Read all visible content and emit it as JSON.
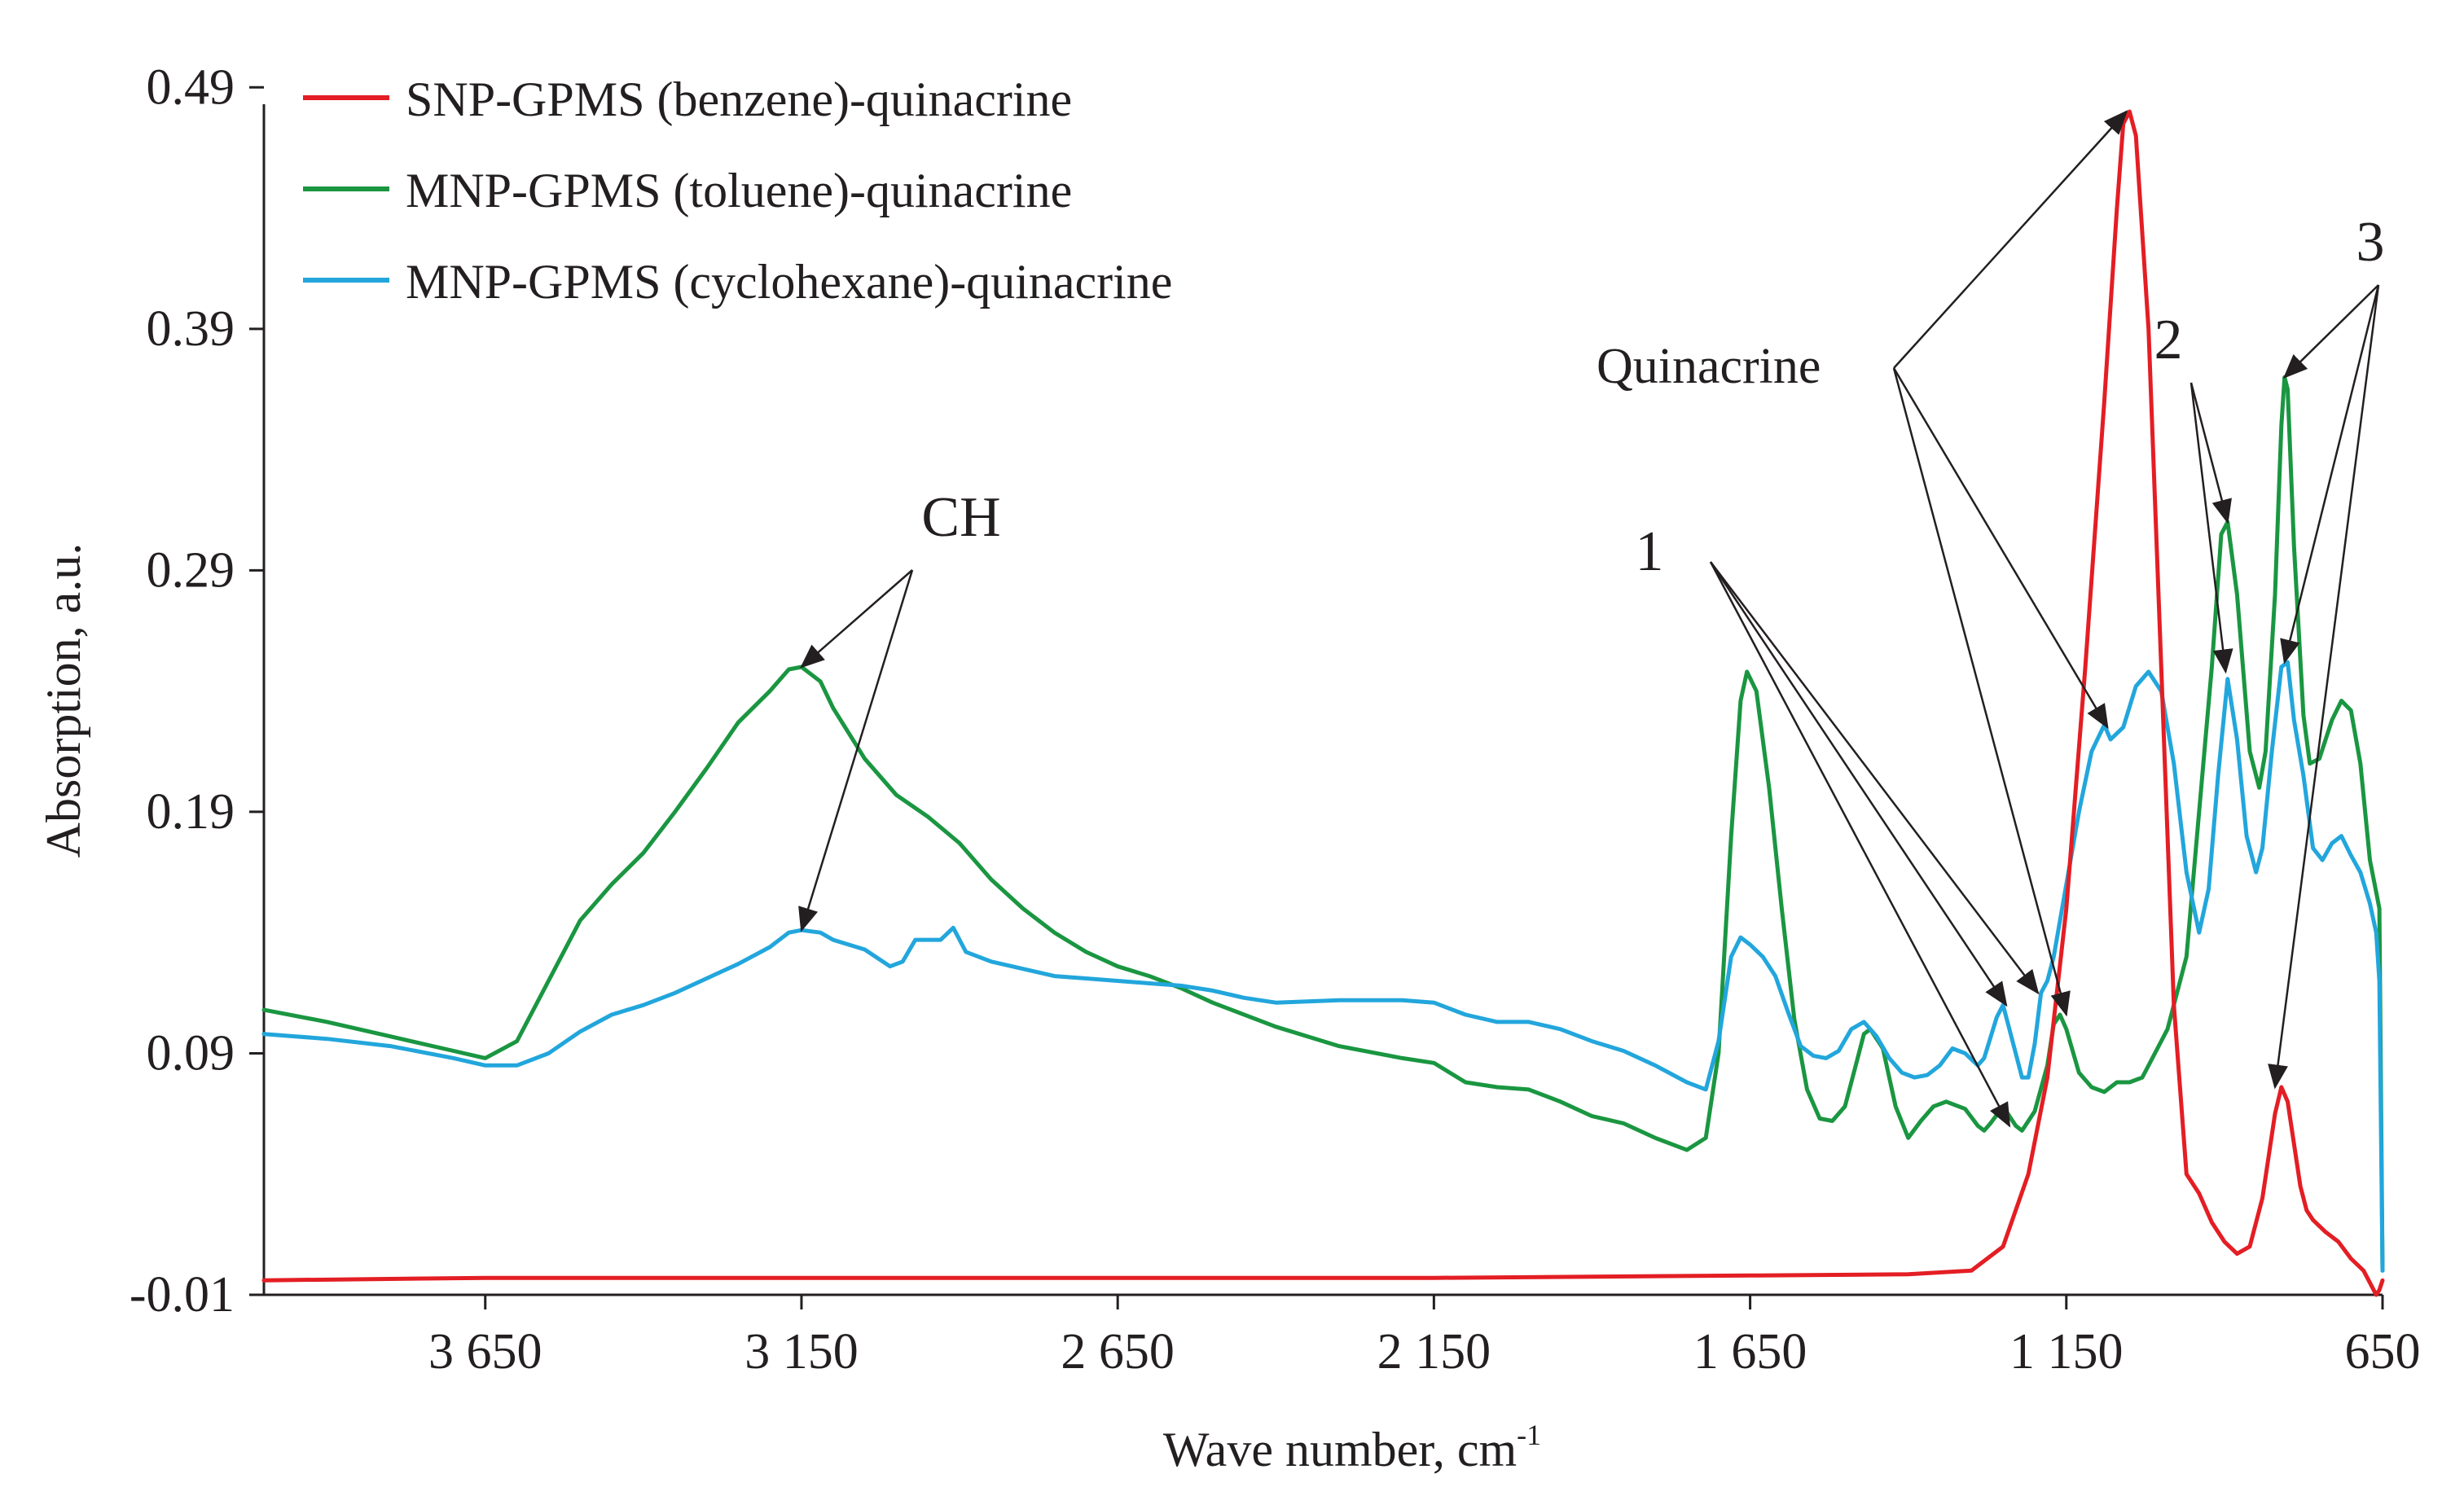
{
  "chart_data": {
    "type": "line",
    "title": "",
    "xlabel": "Wave number, cm",
    "xlabel_sup": "-1",
    "ylabel": "Absorption, a.u.",
    "xlim": [
      4000,
      650
    ],
    "ylim": [
      -0.01,
      0.51
    ],
    "x_inverted": true,
    "x_ticks": [
      3650,
      3150,
      2650,
      2150,
      1650,
      1150,
      650
    ],
    "x_tick_labels": [
      "3 650",
      "3 150",
      "2 650",
      "2 150",
      "1 650",
      "1 150",
      "650"
    ],
    "y_ticks": [
      -0.01,
      0.09,
      0.19,
      0.29,
      0.39,
      0.49
    ],
    "y_tick_labels": [
      "-0.01",
      "0.09",
      "0.19",
      "0.29",
      "0.39",
      "0.49"
    ],
    "grid": false,
    "legend_position": "top-left",
    "series": [
      {
        "name": "SNP-GPMS (benzene)-quinacrine",
        "color": "#e31e24",
        "points": [
          [
            4000,
            -0.004
          ],
          [
            3650,
            -0.003
          ],
          [
            3150,
            -0.003
          ],
          [
            2650,
            -0.003
          ],
          [
            2150,
            -0.003
          ],
          [
            1650,
            -0.002
          ],
          [
            1400,
            -0.0015
          ],
          [
            1300,
            0.0
          ],
          [
            1250,
            0.01
          ],
          [
            1210,
            0.04
          ],
          [
            1180,
            0.08
          ],
          [
            1150,
            0.15
          ],
          [
            1120,
            0.25
          ],
          [
            1090,
            0.36
          ],
          [
            1070,
            0.44
          ],
          [
            1060,
            0.475
          ],
          [
            1050,
            0.48
          ],
          [
            1040,
            0.47
          ],
          [
            1020,
            0.39
          ],
          [
            1000,
            0.25
          ],
          [
            980,
            0.11
          ],
          [
            960,
            0.04
          ],
          [
            940,
            0.032
          ],
          [
            920,
            0.02
          ],
          [
            900,
            0.012
          ],
          [
            880,
            0.007
          ],
          [
            860,
            0.01
          ],
          [
            840,
            0.03
          ],
          [
            820,
            0.065
          ],
          [
            810,
            0.076
          ],
          [
            800,
            0.07
          ],
          [
            780,
            0.035
          ],
          [
            770,
            0.025
          ],
          [
            760,
            0.021
          ],
          [
            740,
            0.016
          ],
          [
            720,
            0.012
          ],
          [
            700,
            0.005
          ],
          [
            680,
            0.0
          ],
          [
            670,
            -0.005
          ],
          [
            660,
            -0.01
          ],
          [
            655,
            -0.008
          ],
          [
            650,
            -0.004
          ]
        ]
      },
      {
        "name": "MNP-GPMS (toluene)-quinacrine",
        "color": "#1a9641",
        "points": [
          [
            4000,
            0.108
          ],
          [
            3900,
            0.103
          ],
          [
            3800,
            0.097
          ],
          [
            3700,
            0.091
          ],
          [
            3650,
            0.088
          ],
          [
            3600,
            0.095
          ],
          [
            3550,
            0.12
          ],
          [
            3500,
            0.145
          ],
          [
            3450,
            0.16
          ],
          [
            3400,
            0.173
          ],
          [
            3350,
            0.19
          ],
          [
            3300,
            0.208
          ],
          [
            3250,
            0.227
          ],
          [
            3200,
            0.24
          ],
          [
            3170,
            0.249
          ],
          [
            3150,
            0.25
          ],
          [
            3120,
            0.244
          ],
          [
            3100,
            0.233
          ],
          [
            3050,
            0.212
          ],
          [
            3000,
            0.197
          ],
          [
            2950,
            0.188
          ],
          [
            2900,
            0.177
          ],
          [
            2850,
            0.162
          ],
          [
            2800,
            0.15
          ],
          [
            2750,
            0.14
          ],
          [
            2700,
            0.132
          ],
          [
            2650,
            0.126
          ],
          [
            2600,
            0.122
          ],
          [
            2550,
            0.117
          ],
          [
            2500,
            0.111
          ],
          [
            2400,
            0.101
          ],
          [
            2300,
            0.093
          ],
          [
            2200,
            0.088
          ],
          [
            2150,
            0.086
          ],
          [
            2100,
            0.078
          ],
          [
            2050,
            0.076
          ],
          [
            2000,
            0.075
          ],
          [
            1950,
            0.07
          ],
          [
            1900,
            0.064
          ],
          [
            1850,
            0.061
          ],
          [
            1800,
            0.055
          ],
          [
            1750,
            0.05
          ],
          [
            1720,
            0.055
          ],
          [
            1700,
            0.09
          ],
          [
            1680,
            0.18
          ],
          [
            1665,
            0.236
          ],
          [
            1655,
            0.248
          ],
          [
            1640,
            0.24
          ],
          [
            1620,
            0.2
          ],
          [
            1600,
            0.15
          ],
          [
            1580,
            0.104
          ],
          [
            1560,
            0.075
          ],
          [
            1540,
            0.063
          ],
          [
            1520,
            0.062
          ],
          [
            1500,
            0.068
          ],
          [
            1480,
            0.088
          ],
          [
            1470,
            0.098
          ],
          [
            1460,
            0.1
          ],
          [
            1440,
            0.092
          ],
          [
            1420,
            0.068
          ],
          [
            1400,
            0.055
          ],
          [
            1380,
            0.062
          ],
          [
            1360,
            0.068
          ],
          [
            1340,
            0.07
          ],
          [
            1310,
            0.067
          ],
          [
            1290,
            0.06
          ],
          [
            1280,
            0.058
          ],
          [
            1270,
            0.061
          ],
          [
            1250,
            0.068
          ],
          [
            1230,
            0.06
          ],
          [
            1220,
            0.058
          ],
          [
            1200,
            0.066
          ],
          [
            1180,
            0.085
          ],
          [
            1170,
            0.102
          ],
          [
            1160,
            0.106
          ],
          [
            1150,
            0.1
          ],
          [
            1130,
            0.082
          ],
          [
            1110,
            0.076
          ],
          [
            1090,
            0.074
          ],
          [
            1070,
            0.078
          ],
          [
            1050,
            0.078
          ],
          [
            1030,
            0.08
          ],
          [
            1010,
            0.09
          ],
          [
            990,
            0.1
          ],
          [
            960,
            0.13
          ],
          [
            940,
            0.19
          ],
          [
            920,
            0.25
          ],
          [
            905,
            0.305
          ],
          [
            895,
            0.31
          ],
          [
            880,
            0.28
          ],
          [
            860,
            0.215
          ],
          [
            845,
            0.2
          ],
          [
            835,
            0.215
          ],
          [
            820,
            0.28
          ],
          [
            810,
            0.35
          ],
          [
            805,
            0.37
          ],
          [
            800,
            0.365
          ],
          [
            790,
            0.3
          ],
          [
            775,
            0.23
          ],
          [
            765,
            0.21
          ],
          [
            750,
            0.212
          ],
          [
            730,
            0.228
          ],
          [
            715,
            0.236
          ],
          [
            700,
            0.232
          ],
          [
            685,
            0.21
          ],
          [
            670,
            0.17
          ],
          [
            655,
            0.15
          ],
          [
            650,
            0.0
          ]
        ]
      },
      {
        "name": "MNP-GPMS (cyclohexane)-quinacrine",
        "color": "#22a6dc",
        "points": [
          [
            4000,
            0.098
          ],
          [
            3900,
            0.096
          ],
          [
            3800,
            0.093
          ],
          [
            3700,
            0.088
          ],
          [
            3650,
            0.085
          ],
          [
            3600,
            0.085
          ],
          [
            3550,
            0.09
          ],
          [
            3500,
            0.099
          ],
          [
            3450,
            0.106
          ],
          [
            3400,
            0.11
          ],
          [
            3350,
            0.115
          ],
          [
            3300,
            0.121
          ],
          [
            3250,
            0.127
          ],
          [
            3200,
            0.134
          ],
          [
            3170,
            0.14
          ],
          [
            3150,
            0.141
          ],
          [
            3120,
            0.14
          ],
          [
            3100,
            0.137
          ],
          [
            3050,
            0.133
          ],
          [
            3010,
            0.126
          ],
          [
            2990,
            0.128
          ],
          [
            2970,
            0.137
          ],
          [
            2930,
            0.137
          ],
          [
            2910,
            0.142
          ],
          [
            2890,
            0.132
          ],
          [
            2850,
            0.128
          ],
          [
            2800,
            0.125
          ],
          [
            2750,
            0.122
          ],
          [
            2700,
            0.121
          ],
          [
            2650,
            0.12
          ],
          [
            2600,
            0.119
          ],
          [
            2550,
            0.118
          ],
          [
            2500,
            0.116
          ],
          [
            2450,
            0.113
          ],
          [
            2400,
            0.111
          ],
          [
            2300,
            0.112
          ],
          [
            2200,
            0.112
          ],
          [
            2150,
            0.111
          ],
          [
            2100,
            0.106
          ],
          [
            2050,
            0.103
          ],
          [
            2000,
            0.103
          ],
          [
            1950,
            0.1
          ],
          [
            1900,
            0.095
          ],
          [
            1850,
            0.091
          ],
          [
            1800,
            0.085
          ],
          [
            1750,
            0.078
          ],
          [
            1720,
            0.075
          ],
          [
            1700,
            0.095
          ],
          [
            1680,
            0.13
          ],
          [
            1665,
            0.138
          ],
          [
            1650,
            0.135
          ],
          [
            1630,
            0.13
          ],
          [
            1610,
            0.122
          ],
          [
            1590,
            0.107
          ],
          [
            1570,
            0.093
          ],
          [
            1550,
            0.089
          ],
          [
            1530,
            0.088
          ],
          [
            1510,
            0.091
          ],
          [
            1490,
            0.1
          ],
          [
            1470,
            0.103
          ],
          [
            1450,
            0.097
          ],
          [
            1430,
            0.088
          ],
          [
            1410,
            0.082
          ],
          [
            1390,
            0.08
          ],
          [
            1370,
            0.081
          ],
          [
            1350,
            0.085
          ],
          [
            1330,
            0.092
          ],
          [
            1310,
            0.09
          ],
          [
            1290,
            0.085
          ],
          [
            1280,
            0.088
          ],
          [
            1260,
            0.105
          ],
          [
            1250,
            0.11
          ],
          [
            1240,
            0.1
          ],
          [
            1220,
            0.08
          ],
          [
            1210,
            0.08
          ],
          [
            1200,
            0.094
          ],
          [
            1190,
            0.115
          ],
          [
            1180,
            0.12
          ],
          [
            1170,
            0.13
          ],
          [
            1150,
            0.16
          ],
          [
            1130,
            0.19
          ],
          [
            1110,
            0.215
          ],
          [
            1090,
            0.226
          ],
          [
            1080,
            0.22
          ],
          [
            1060,
            0.225
          ],
          [
            1040,
            0.242
          ],
          [
            1020,
            0.248
          ],
          [
            1000,
            0.24
          ],
          [
            980,
            0.21
          ],
          [
            960,
            0.165
          ],
          [
            940,
            0.14
          ],
          [
            925,
            0.158
          ],
          [
            910,
            0.205
          ],
          [
            895,
            0.245
          ],
          [
            880,
            0.22
          ],
          [
            865,
            0.18
          ],
          [
            850,
            0.165
          ],
          [
            840,
            0.175
          ],
          [
            825,
            0.215
          ],
          [
            810,
            0.25
          ],
          [
            800,
            0.252
          ],
          [
            790,
            0.228
          ],
          [
            775,
            0.205
          ],
          [
            760,
            0.175
          ],
          [
            745,
            0.17
          ],
          [
            730,
            0.177
          ],
          [
            715,
            0.18
          ],
          [
            700,
            0.172
          ],
          [
            685,
            0.165
          ],
          [
            670,
            0.152
          ],
          [
            660,
            0.14
          ],
          [
            655,
            0.12
          ],
          [
            650,
            0.0
          ]
        ]
      }
    ],
    "annotations": [
      {
        "text": "CH",
        "series": "MNP-GPMS (toluene)-quinacrine",
        "targets": [
          [
            3150,
            0.25
          ],
          [
            3150,
            0.141
          ]
        ]
      },
      {
        "text": "Quinacrine",
        "targets": [
          [
            1055,
            0.48
          ],
          [
            1085,
            0.225
          ],
          [
            1150,
            0.106
          ]
        ]
      },
      {
        "text": "1",
        "targets": [
          [
            1195,
            0.115
          ],
          [
            1245,
            0.11
          ],
          [
            1240,
            0.06
          ]
        ]
      },
      {
        "text": "2",
        "targets": [
          [
            895,
            0.31
          ],
          [
            898,
            0.248
          ]
        ]
      },
      {
        "text": "3",
        "targets": [
          [
            805,
            0.37
          ],
          [
            805,
            0.252
          ],
          [
            820,
            0.076
          ]
        ]
      }
    ]
  }
}
